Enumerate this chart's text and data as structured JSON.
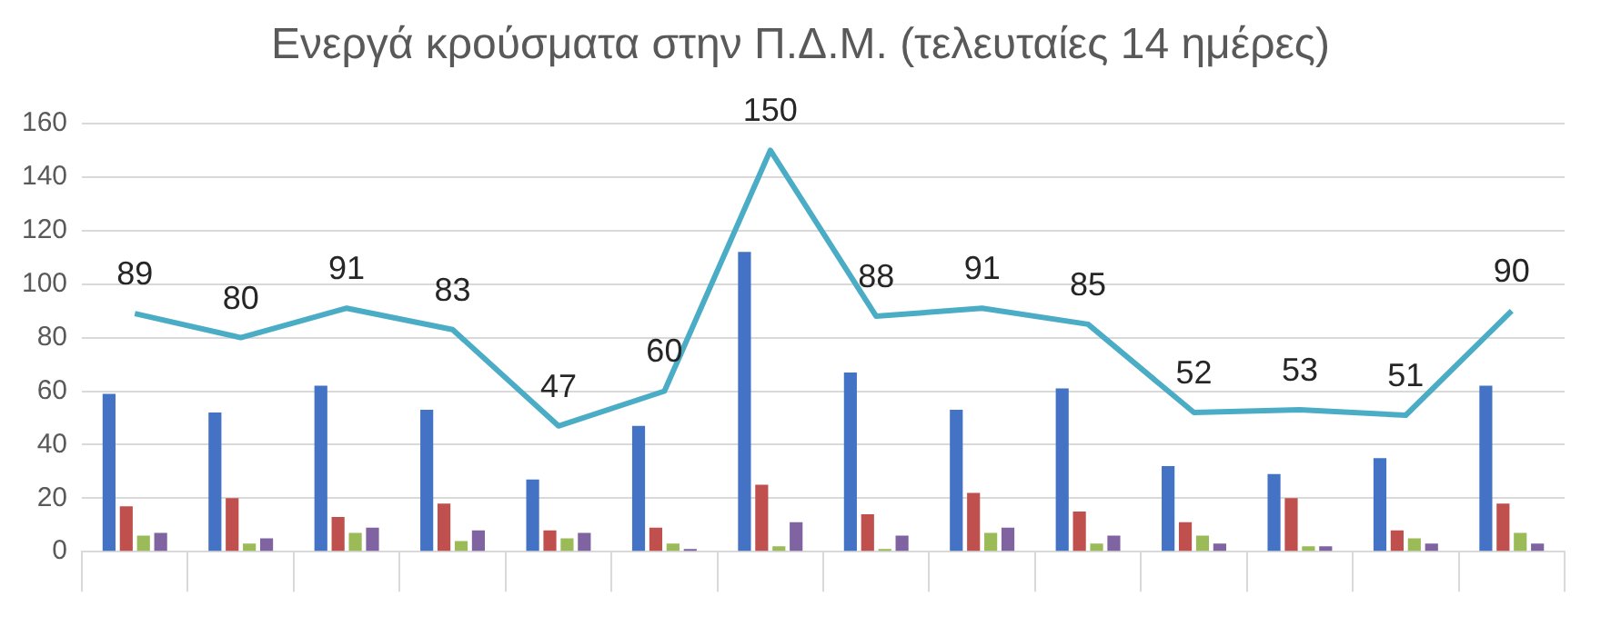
{
  "chart_data": {
    "type": "bar",
    "title": "Ενεργά κρούσματα στην Π.Δ.Μ. (τελευταίες 14 ημέρες)",
    "categories": [
      null,
      null,
      null,
      null,
      null,
      null,
      null,
      null,
      null,
      null,
      null,
      null,
      null,
      null
    ],
    "series": [
      {
        "color": "#4472c4",
        "values": [
          59,
          52,
          62,
          53,
          27,
          47,
          112,
          67,
          53,
          61,
          32,
          29,
          35,
          62
        ]
      },
      {
        "color": "#c0504d",
        "values": [
          17,
          20,
          13,
          18,
          8,
          9,
          25,
          14,
          22,
          15,
          11,
          20,
          8,
          18
        ]
      },
      {
        "color": "#9bbb59",
        "values": [
          6,
          3,
          7,
          4,
          5,
          3,
          2,
          1,
          7,
          3,
          6,
          2,
          5,
          7
        ]
      },
      {
        "color": "#8064a2",
        "values": [
          7,
          5,
          9,
          8,
          7,
          1,
          11,
          6,
          9,
          6,
          3,
          2,
          3,
          3
        ]
      },
      {
        "type": "line",
        "color": "#4bacc6",
        "values": [
          89,
          80,
          91,
          83,
          47,
          60,
          150,
          88,
          91,
          85,
          52,
          53,
          51,
          90
        ],
        "value_labels": [
          "89",
          "80",
          "91",
          "83",
          "47",
          "60",
          "150",
          "88",
          "91",
          "85",
          "52",
          "53",
          "51",
          "90"
        ]
      }
    ],
    "ylim": [
      0,
      160
    ],
    "yticks": [
      0,
      20,
      40,
      60,
      80,
      100,
      120,
      140,
      160
    ],
    "grid": "y",
    "legend": false,
    "marker": "none"
  }
}
